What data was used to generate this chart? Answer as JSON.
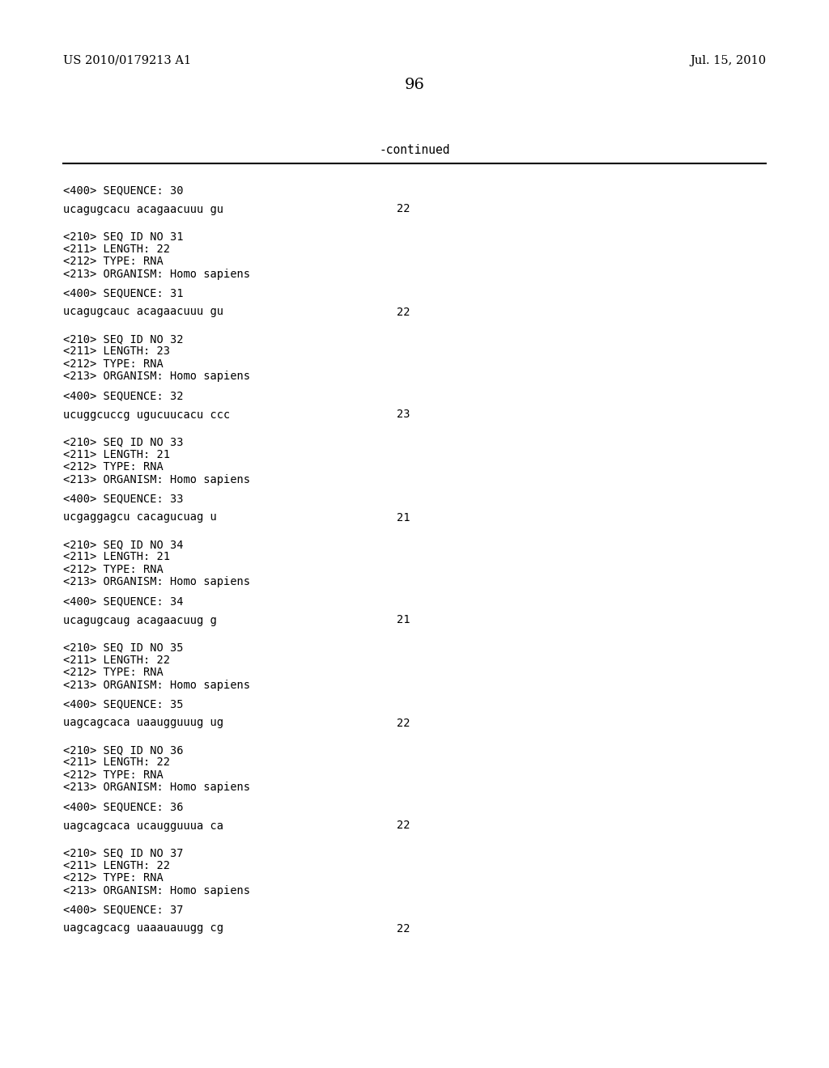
{
  "header_left": "US 2010/0179213 A1",
  "header_right": "Jul. 15, 2010",
  "page_number": "96",
  "continued_text": "-continued",
  "background_color": "#ffffff",
  "text_color": "#000000",
  "content_blocks": [
    {
      "lines": [
        "<400> SEQUENCE: 30"
      ],
      "type": "tag"
    },
    {
      "lines": [
        "ucagugcacu acagaacuuu gu                      22"
      ],
      "type": "seq"
    },
    {
      "lines": [
        ""
      ],
      "type": "blank"
    },
    {
      "lines": [
        "<210> SEQ ID NO 31",
        "<211> LENGTH: 22",
        "<212> TYPE: RNA",
        "<213> ORGANISM: Homo sapiens"
      ],
      "type": "tag"
    },
    {
      "lines": [
        ""
      ],
      "type": "blank"
    },
    {
      "lines": [
        "<400> SEQUENCE: 31"
      ],
      "type": "tag"
    },
    {
      "lines": [
        "ucagugcauc acagaacuuu gu                      22"
      ],
      "type": "seq"
    },
    {
      "lines": [
        ""
      ],
      "type": "blank"
    },
    {
      "lines": [
        "<210> SEQ ID NO 32",
        "<211> LENGTH: 23",
        "<212> TYPE: RNA",
        "<213> ORGANISM: Homo sapiens"
      ],
      "type": "tag"
    },
    {
      "lines": [
        ""
      ],
      "type": "blank"
    },
    {
      "lines": [
        "<400> SEQUENCE: 32"
      ],
      "type": "tag"
    },
    {
      "lines": [
        "ucuggcuccg ugucuucacu ccc                     23"
      ],
      "type": "seq"
    },
    {
      "lines": [
        ""
      ],
      "type": "blank"
    },
    {
      "lines": [
        "<210> SEQ ID NO 33",
        "<211> LENGTH: 21",
        "<212> TYPE: RNA",
        "<213> ORGANISM: Homo sapiens"
      ],
      "type": "tag"
    },
    {
      "lines": [
        ""
      ],
      "type": "blank"
    },
    {
      "lines": [
        "<400> SEQUENCE: 33"
      ],
      "type": "tag"
    },
    {
      "lines": [
        "ucgaggagcu cacagucuag u                       21"
      ],
      "type": "seq"
    },
    {
      "lines": [
        ""
      ],
      "type": "blank"
    },
    {
      "lines": [
        "<210> SEQ ID NO 34",
        "<211> LENGTH: 21",
        "<212> TYPE: RNA",
        "<213> ORGANISM: Homo sapiens"
      ],
      "type": "tag"
    },
    {
      "lines": [
        ""
      ],
      "type": "blank"
    },
    {
      "lines": [
        "<400> SEQUENCE: 34"
      ],
      "type": "tag"
    },
    {
      "lines": [
        "ucagugcaug acagaacuug g                       21"
      ],
      "type": "seq"
    },
    {
      "lines": [
        ""
      ],
      "type": "blank"
    },
    {
      "lines": [
        "<210> SEQ ID NO 35",
        "<211> LENGTH: 22",
        "<212> TYPE: RNA",
        "<213> ORGANISM: Homo sapiens"
      ],
      "type": "tag"
    },
    {
      "lines": [
        ""
      ],
      "type": "blank"
    },
    {
      "lines": [
        "<400> SEQUENCE: 35"
      ],
      "type": "tag"
    },
    {
      "lines": [
        "uagcagcaca uaaugguuug ug                      22"
      ],
      "type": "seq"
    },
    {
      "lines": [
        ""
      ],
      "type": "blank"
    },
    {
      "lines": [
        "<210> SEQ ID NO 36",
        "<211> LENGTH: 22",
        "<212> TYPE: RNA",
        "<213> ORGANISM: Homo sapiens"
      ],
      "type": "tag"
    },
    {
      "lines": [
        ""
      ],
      "type": "blank"
    },
    {
      "lines": [
        "<400> SEQUENCE: 36"
      ],
      "type": "tag"
    },
    {
      "lines": [
        "uagcagcaca ucaugguuua ca                      22"
      ],
      "type": "seq"
    },
    {
      "lines": [
        ""
      ],
      "type": "blank"
    },
    {
      "lines": [
        "<210> SEQ ID NO 37",
        "<211> LENGTH: 22",
        "<212> TYPE: RNA",
        "<213> ORGANISM: Homo sapiens"
      ],
      "type": "tag"
    },
    {
      "lines": [
        ""
      ],
      "type": "blank"
    },
    {
      "lines": [
        "<400> SEQUENCE: 37"
      ],
      "type": "tag"
    },
    {
      "lines": [
        "uagcagcacg uaaauauugg cg                      22"
      ],
      "type": "seq"
    }
  ],
  "seq_col2_texts": [
    [
      "ucagugcacu acagaacuuu gu",
      "22"
    ],
    [
      "ucagugcauc acagaacuuu gu",
      "22"
    ],
    [
      "ucuggcuccg ugucuucacu ccc",
      "23"
    ],
    [
      "ucgaggagcu cacagucuag u",
      "21"
    ],
    [
      "ucagugcaug acagaacuug g",
      "21"
    ],
    [
      "uagcagcaca uaaugguuug ug",
      "22"
    ],
    [
      "uagcagcaca ucaugguuua ca",
      "22"
    ],
    [
      "uagcagcacg uaaauauugg cg",
      "22"
    ]
  ]
}
